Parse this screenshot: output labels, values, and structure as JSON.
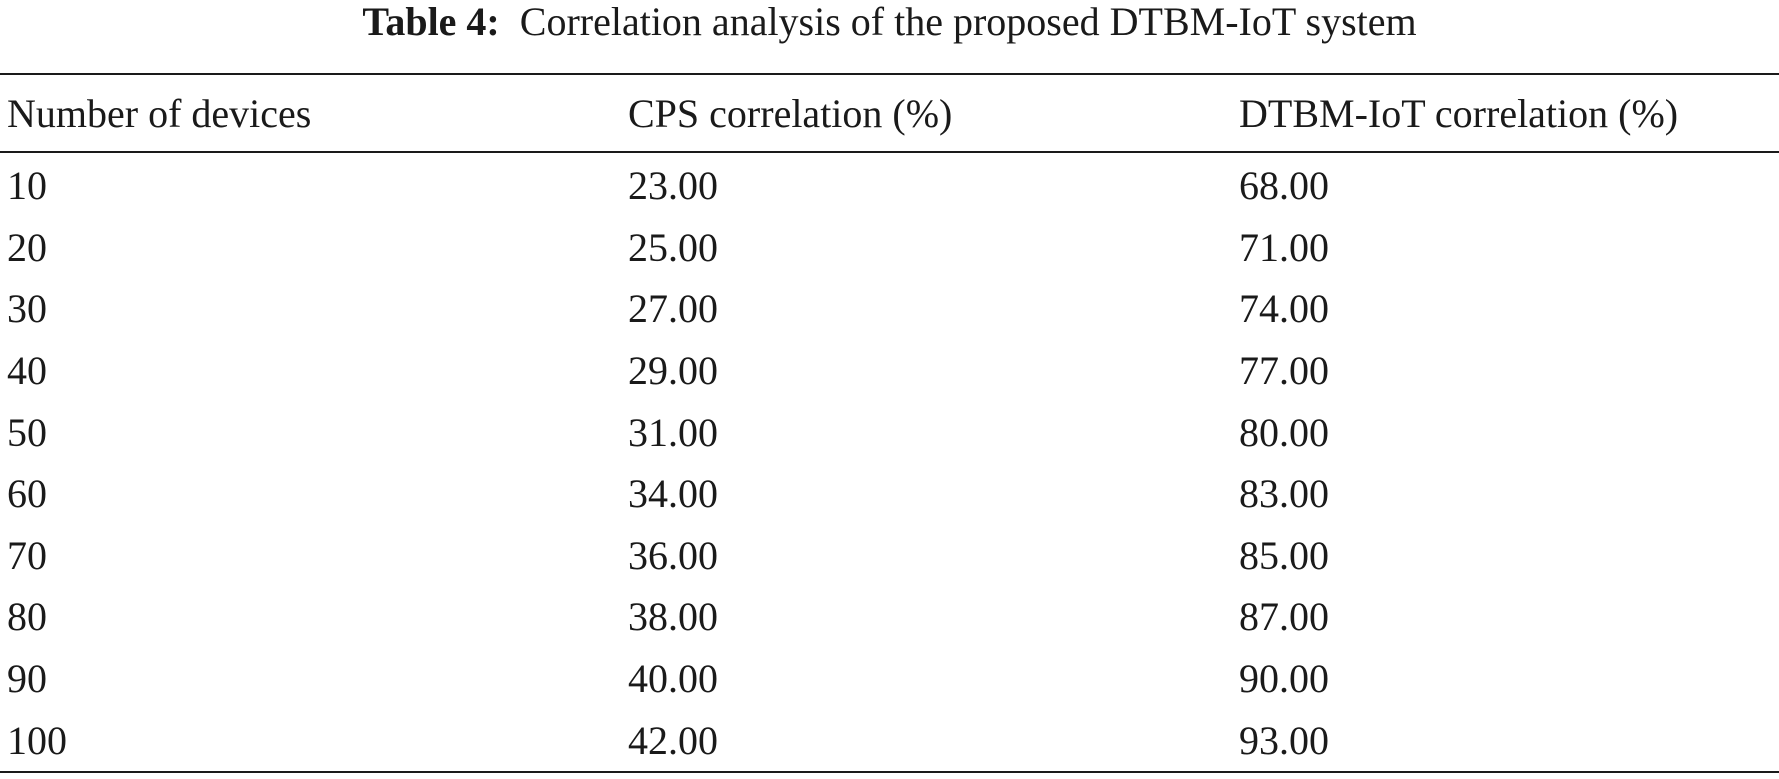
{
  "caption": {
    "label": "Table 4:",
    "text": "Correlation analysis of the proposed DTBM-IoT system"
  },
  "table": {
    "headers": [
      "Number of devices",
      "CPS correlation (%)",
      "DTBM-IoT correlation (%)"
    ],
    "rows": [
      [
        "10",
        "23.00",
        "68.00"
      ],
      [
        "20",
        "25.00",
        "71.00"
      ],
      [
        "30",
        "27.00",
        "74.00"
      ],
      [
        "40",
        "29.00",
        "77.00"
      ],
      [
        "50",
        "31.00",
        "80.00"
      ],
      [
        "60",
        "34.00",
        "83.00"
      ],
      [
        "70",
        "36.00",
        "85.00"
      ],
      [
        "80",
        "38.00",
        "87.00"
      ],
      [
        "90",
        "40.00",
        "90.00"
      ],
      [
        "100",
        "42.00",
        "93.00"
      ]
    ]
  }
}
